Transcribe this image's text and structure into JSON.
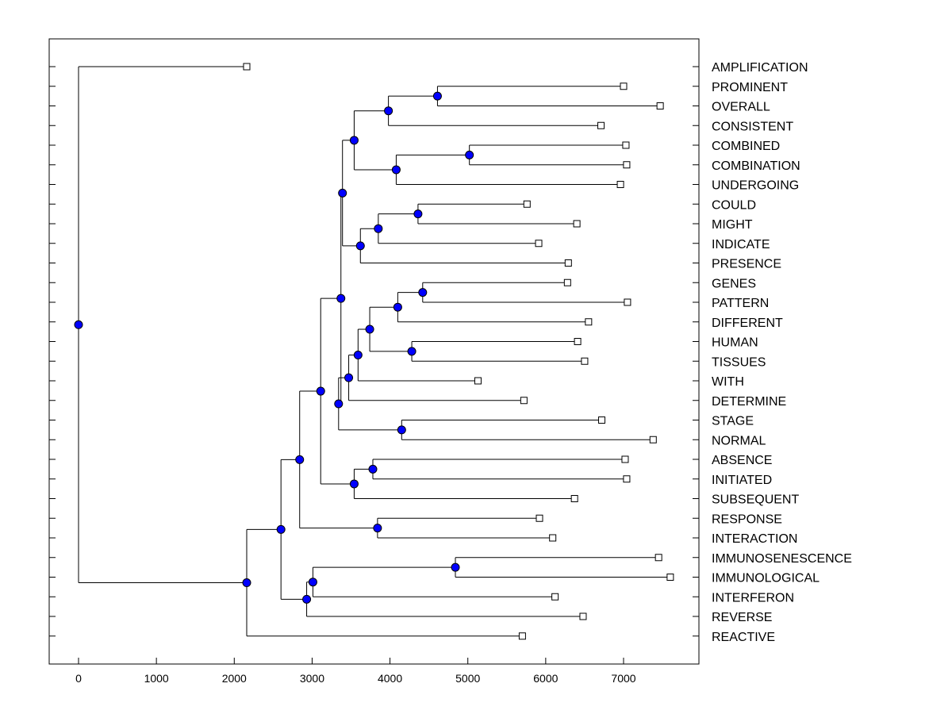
{
  "chart_data": {
    "type": "dendrogram",
    "title": "",
    "xlabel": "",
    "ylabel": "",
    "x_ticks": [
      0,
      1000,
      2000,
      3000,
      4000,
      5000,
      6000,
      7000
    ],
    "xlim": [
      -370,
      7980
    ],
    "orientation": "root-left",
    "colors": {
      "node_fill": "#0000ff",
      "line": "#000000",
      "leaf_fill": "#ffffff"
    },
    "leaves": [
      {
        "label": "AMPLIFICATION",
        "value": 2160
      },
      {
        "label": "PROMINENT",
        "value": 7000
      },
      {
        "label": "OVERALL",
        "value": 7470
      },
      {
        "label": "CONSISTENT",
        "value": 6710
      },
      {
        "label": "COMBINED",
        "value": 7030
      },
      {
        "label": "COMBINATION",
        "value": 7040
      },
      {
        "label": "UNDERGOING",
        "value": 6960
      },
      {
        "label": "COULD",
        "value": 5760
      },
      {
        "label": "MIGHT",
        "value": 6400
      },
      {
        "label": "INDICATE",
        "value": 5910
      },
      {
        "label": "PRESENCE",
        "value": 6290
      },
      {
        "label": "GENES",
        "value": 6280
      },
      {
        "label": "PATTERN",
        "value": 7050
      },
      {
        "label": "DIFFERENT",
        "value": 6550
      },
      {
        "label": "HUMAN",
        "value": 6410
      },
      {
        "label": "TISSUES",
        "value": 6500
      },
      {
        "label": "WITH",
        "value": 5130
      },
      {
        "label": "DETERMINE",
        "value": 5720
      },
      {
        "label": "STAGE",
        "value": 6720
      },
      {
        "label": "NORMAL",
        "value": 7380
      },
      {
        "label": "ABSENCE",
        "value": 7020
      },
      {
        "label": "INITIATED",
        "value": 7040
      },
      {
        "label": "SUBSEQUENT",
        "value": 6370
      },
      {
        "label": "RESPONSE",
        "value": 5920
      },
      {
        "label": "INTERACTION",
        "value": 6090
      },
      {
        "label": "IMMUNOSENESCENCE",
        "value": 7450
      },
      {
        "label": "IMMUNOLOGICAL",
        "value": 7600
      },
      {
        "label": "INTERFERON",
        "value": 6120
      },
      {
        "label": "REVERSE",
        "value": 6480
      },
      {
        "label": "REACTIVE",
        "value": 5700
      }
    ],
    "nodes": [
      {
        "id": "n1",
        "value": 4610,
        "children": [
          1,
          2
        ]
      },
      {
        "id": "n2",
        "value": 3980,
        "children": [
          "n1",
          3
        ]
      },
      {
        "id": "n3",
        "value": 5020,
        "children": [
          4,
          5
        ]
      },
      {
        "id": "n4",
        "value": 4080,
        "children": [
          "n3",
          6
        ]
      },
      {
        "id": "n5",
        "value": 3540,
        "children": [
          "n2",
          "n4"
        ]
      },
      {
        "id": "n6",
        "value": 4360,
        "children": [
          7,
          8
        ]
      },
      {
        "id": "n7",
        "value": 3850,
        "children": [
          "n6",
          9
        ]
      },
      {
        "id": "n8",
        "value": 3620,
        "children": [
          "n7",
          10
        ]
      },
      {
        "id": "n9",
        "value": 3390,
        "children": [
          "n5",
          "n8"
        ]
      },
      {
        "id": "n10",
        "value": 4420,
        "children": [
          11,
          12
        ]
      },
      {
        "id": "n11",
        "value": 4100,
        "children": [
          "n10",
          13
        ]
      },
      {
        "id": "n12",
        "value": 4280,
        "children": [
          14,
          15
        ]
      },
      {
        "id": "n13",
        "value": 3740,
        "children": [
          "n11",
          "n12"
        ]
      },
      {
        "id": "n14",
        "value": 3590,
        "children": [
          "n13",
          16
        ]
      },
      {
        "id": "n15",
        "value": 3470,
        "children": [
          "n14",
          17
        ]
      },
      {
        "id": "n16",
        "value": 4150,
        "children": [
          18,
          19
        ]
      },
      {
        "id": "n17",
        "value": 3340,
        "children": [
          "n15",
          "n16"
        ]
      },
      {
        "id": "n18",
        "value": 3370,
        "children": [
          "n9",
          "n17"
        ]
      },
      {
        "id": "n19",
        "value": 3780,
        "children": [
          20,
          21
        ]
      },
      {
        "id": "n20",
        "value": 3540,
        "children": [
          "n19",
          22
        ]
      },
      {
        "id": "n21",
        "value": 3110,
        "children": [
          "n18",
          "n20"
        ]
      },
      {
        "id": "n22",
        "value": 3840,
        "children": [
          23,
          24
        ]
      },
      {
        "id": "n23",
        "value": 2840,
        "children": [
          "n21",
          "n22"
        ]
      },
      {
        "id": "n24",
        "value": 4840,
        "children": [
          25,
          26
        ]
      },
      {
        "id": "n25",
        "value": 3010,
        "children": [
          "n24",
          27
        ]
      },
      {
        "id": "n26",
        "value": 2930,
        "children": [
          "n25",
          28
        ]
      },
      {
        "id": "n27",
        "value": 2600,
        "children": [
          "n23",
          "n26"
        ]
      },
      {
        "id": "n28",
        "value": 2160,
        "children": [
          "n27",
          29
        ]
      },
      {
        "id": "n29",
        "value": 0,
        "children": [
          0,
          "n28"
        ]
      }
    ],
    "root": "n29"
  }
}
